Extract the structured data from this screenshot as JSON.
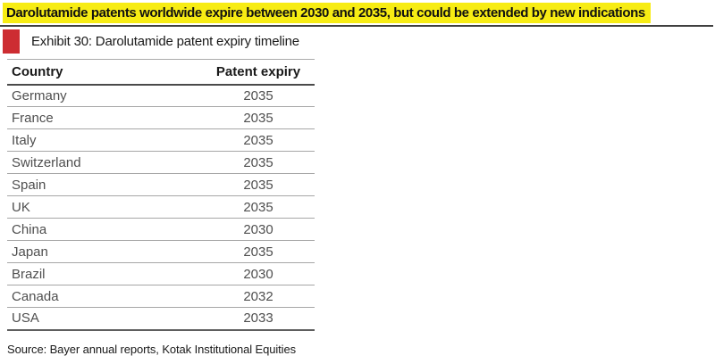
{
  "headline": {
    "text": "Darolutamide patents worldwide expire between 2030 and 2035, but could be extended by new indications",
    "highlight_color": "#f7ec13"
  },
  "exhibit": {
    "title": "Exhibit 30: Darolutamide patent expiry timeline",
    "marker_color": "#cd2d32"
  },
  "table": {
    "columns": [
      "Country",
      "Patent expiry"
    ],
    "rows": [
      {
        "country": "Germany",
        "expiry": "2035"
      },
      {
        "country": "France",
        "expiry": "2035"
      },
      {
        "country": "Italy",
        "expiry": "2035"
      },
      {
        "country": "Switzerland",
        "expiry": "2035"
      },
      {
        "country": "Spain",
        "expiry": "2035"
      },
      {
        "country": "UK",
        "expiry": "2035"
      },
      {
        "country": "China",
        "expiry": "2030"
      },
      {
        "country": "Japan",
        "expiry": "2035"
      },
      {
        "country": "Brazil",
        "expiry": "2030"
      },
      {
        "country": "Canada",
        "expiry": "2032"
      },
      {
        "country": "USA",
        "expiry": "2033"
      }
    ]
  },
  "source": "Source: Bayer annual reports, Kotak Institutional Equities"
}
